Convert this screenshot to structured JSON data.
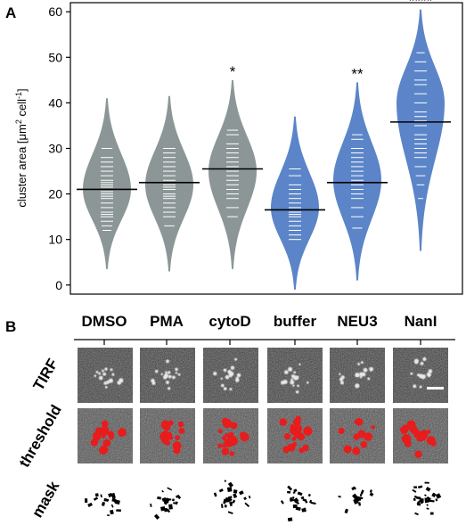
{
  "panel_a_label": "A",
  "panel_b_label": "B",
  "chart_data": {
    "type": "violin",
    "ylabel_parts": [
      "cluster area [",
      "μm",
      "2",
      " cell",
      "-1",
      "]"
    ],
    "ylim": [
      -2,
      62
    ],
    "yticks": [
      0,
      10,
      20,
      30,
      40,
      50,
      60
    ],
    "grid": false,
    "categories": [
      "DMSO",
      "PMA",
      "cytoD",
      "buffer",
      "NEU3",
      "NanI"
    ],
    "colors": {
      "gray": "#8c9696",
      "blue": "#5b85c8",
      "mean_line": "#000000",
      "ticks": "#ffffff"
    },
    "series": [
      {
        "category": "DMSO",
        "color": "gray",
        "min": 3.5,
        "max": 41,
        "mode": 21,
        "mean": 21.0,
        "significance": "",
        "points": [
          12,
          13,
          14,
          15,
          15.5,
          16,
          17,
          18,
          19,
          19.5,
          20,
          20.5,
          21,
          21.5,
          22,
          22.5,
          23,
          24,
          25,
          26,
          27,
          28,
          30
        ]
      },
      {
        "category": "PMA",
        "color": "gray",
        "min": 3,
        "max": 41.5,
        "mode": 22,
        "mean": 22.5,
        "significance": "",
        "points": [
          13,
          15,
          16,
          17,
          18,
          19,
          19.5,
          20,
          21,
          21.5,
          22,
          22.5,
          23,
          24,
          25,
          26,
          27,
          28,
          29,
          30
        ]
      },
      {
        "category": "cytoD",
        "color": "gray",
        "min": 3.5,
        "max": 45,
        "mode": 25,
        "mean": 25.5,
        "significance": "*",
        "points": [
          15,
          17,
          19,
          20,
          21,
          22,
          23,
          24,
          25,
          26,
          27,
          28,
          29,
          30,
          31,
          33,
          34
        ]
      },
      {
        "category": "buffer",
        "color": "blue",
        "min": -1,
        "max": 37,
        "mode": 17,
        "mean": 16.5,
        "significance": "",
        "points": [
          10,
          11,
          12,
          13,
          14,
          15,
          15.5,
          16,
          17,
          18,
          19,
          20,
          21,
          22,
          24,
          25.5
        ]
      },
      {
        "category": "NEU3",
        "color": "blue",
        "min": 1,
        "max": 44.5,
        "mode": 23,
        "mean": 22.5,
        "significance": "**",
        "points": [
          12.5,
          15,
          17,
          19,
          20,
          21,
          22,
          23,
          24,
          25,
          26,
          27,
          28,
          29,
          30,
          32,
          33
        ]
      },
      {
        "category": "NanI",
        "color": "blue",
        "min": 7.5,
        "max": 60.5,
        "mode": 40,
        "mean": 35.8,
        "significance": "****",
        "points": [
          19,
          22,
          24,
          26,
          28,
          29,
          30,
          31,
          32,
          33,
          35,
          36,
          37,
          38,
          40,
          42,
          44,
          45,
          47,
          49,
          51
        ]
      }
    ]
  },
  "panel_b": {
    "row_labels": [
      "TIRF",
      "threshold",
      "mask"
    ],
    "scale_bar": true
  }
}
